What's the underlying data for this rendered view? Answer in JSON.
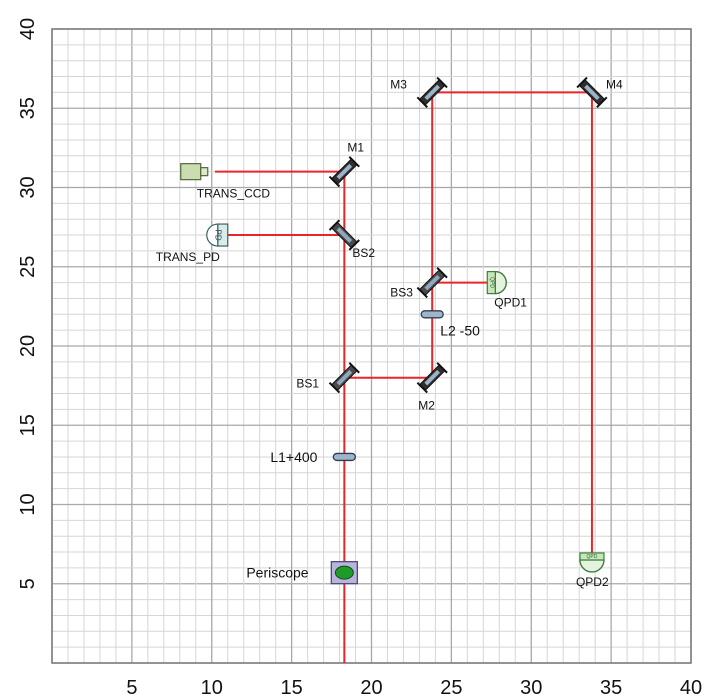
{
  "chart_data": {
    "type": "diagram",
    "xlim": [
      0,
      40
    ],
    "ylim": [
      0,
      40
    ],
    "x_ticks": [
      5,
      10,
      15,
      20,
      25,
      30,
      35,
      40
    ],
    "y_ticks": [
      5,
      10,
      15,
      20,
      25,
      30,
      35,
      40
    ],
    "grid": true,
    "beam_color": "#e8262a",
    "components": [
      {
        "id": "trans_ccd",
        "kind": "camera",
        "label": "TRANS_CCD",
        "x": 10,
        "y": 31
      },
      {
        "id": "trans_pd",
        "kind": "photodiode",
        "label": "TRANS_PD",
        "x": 10,
        "y": 27,
        "icon_text": "PD"
      },
      {
        "id": "m1",
        "kind": "mirror",
        "label": "M1",
        "x": 18.3,
        "y": 31
      },
      {
        "id": "bs2",
        "kind": "beamsplitter",
        "label": "BS2",
        "x": 18.3,
        "y": 27
      },
      {
        "id": "bs1",
        "kind": "beamsplitter",
        "label": "BS1",
        "x": 18.3,
        "y": 18
      },
      {
        "id": "m2",
        "kind": "mirror",
        "label": "M2",
        "x": 23.8,
        "y": 18
      },
      {
        "id": "m3",
        "kind": "mirror",
        "label": "M3",
        "x": 23.8,
        "y": 36
      },
      {
        "id": "m4",
        "kind": "mirror",
        "label": "M4",
        "x": 33.8,
        "y": 36
      },
      {
        "id": "bs3",
        "kind": "beamsplitter",
        "label": "BS3",
        "x": 23.8,
        "y": 24
      },
      {
        "id": "l2",
        "kind": "lens",
        "label": "L2 -50",
        "x": 23.8,
        "y": 22
      },
      {
        "id": "l1",
        "kind": "lens",
        "label": "L1+400",
        "x": 18.3,
        "y": 13
      },
      {
        "id": "qpd1",
        "kind": "qpd",
        "label": "QPD1",
        "x": 28,
        "y": 24,
        "icon_text": "QPD"
      },
      {
        "id": "qpd2",
        "kind": "qpd",
        "label": "QPD2",
        "x": 33.8,
        "y": 6.5,
        "icon_text": "QPD"
      },
      {
        "id": "periscope",
        "kind": "periscope",
        "label": "Periscope",
        "x": 18.3,
        "y": 5.7
      }
    ],
    "beams": [
      [
        [
          18.3,
          0
        ],
        [
          18.3,
          31
        ]
      ],
      [
        [
          10.2,
          31
        ],
        [
          18.3,
          31
        ]
      ],
      [
        [
          10.4,
          27
        ],
        [
          18.3,
          27
        ]
      ],
      [
        [
          18.3,
          18
        ],
        [
          23.8,
          18
        ]
      ],
      [
        [
          23.8,
          18
        ],
        [
          23.8,
          36
        ]
      ],
      [
        [
          23.8,
          36
        ],
        [
          33.8,
          36
        ]
      ],
      [
        [
          33.8,
          36
        ],
        [
          33.8,
          6.5
        ]
      ],
      [
        [
          23.8,
          24
        ],
        [
          28,
          24
        ]
      ]
    ]
  }
}
